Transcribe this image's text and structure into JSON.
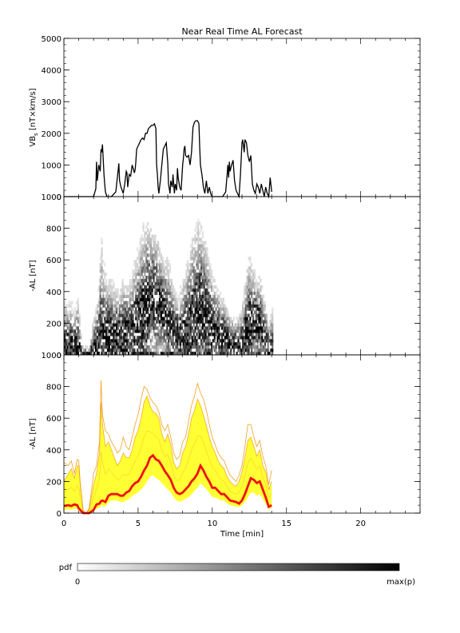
{
  "title": "Near Real Time AL Forecast",
  "colors": {
    "line": "#000000",
    "band_fill": "#ffff33",
    "band_edge": "#f2a020",
    "median": "#ee1111",
    "axis": "#000000"
  },
  "colorbar": {
    "label": "pdf",
    "min_label": "0",
    "max_label": "max(p)"
  },
  "chart_data": [
    {
      "type": "line",
      "panel": "top",
      "ylabel": "VB_s [nT×km/s]",
      "ylabel_parts": {
        "base": "VB",
        "sub": "s",
        "rest": " [nT×km/s]"
      },
      "xlim": [
        0,
        24
      ],
      "ylim": [
        0,
        5000
      ],
      "yticks": [
        0,
        1000,
        2000,
        3000,
        4000,
        5000
      ],
      "x": [
        0,
        2.0,
        2.15,
        2.2,
        2.25,
        2.35,
        2.45,
        2.5,
        2.55,
        2.6,
        2.7,
        2.75,
        2.8,
        2.9,
        3.0,
        3.2,
        3.5,
        3.65,
        3.7,
        3.75,
        3.85,
        4.0,
        4.1,
        4.2,
        4.25,
        4.3,
        4.4,
        4.5,
        4.6,
        4.75,
        4.8,
        4.85,
        4.9,
        5.0,
        5.1,
        5.2,
        5.3,
        5.4,
        5.5,
        5.6,
        5.7,
        5.8,
        5.9,
        6.0,
        6.1,
        6.2,
        6.25,
        6.3,
        6.35,
        6.4,
        6.5,
        6.6,
        6.7,
        6.8,
        6.9,
        7.0,
        7.05,
        7.15,
        7.2,
        7.3,
        7.35,
        7.45,
        7.5,
        7.6,
        7.65,
        7.7,
        7.8,
        7.9,
        8.0,
        8.05,
        8.1,
        8.15,
        8.2,
        8.3,
        8.4,
        8.5,
        8.6,
        8.7,
        8.8,
        8.9,
        9.0,
        9.1,
        9.15,
        9.2,
        9.3,
        9.4,
        9.5,
        9.6,
        9.7,
        9.8,
        9.9,
        10.0,
        10.3,
        10.7,
        10.9,
        11.0,
        11.05,
        11.1,
        11.15,
        11.2,
        11.3,
        11.4,
        11.5,
        11.6,
        11.7,
        11.8,
        11.9,
        12.0,
        12.05,
        12.15,
        12.2,
        12.3,
        12.4,
        12.5,
        12.6,
        12.7,
        12.8,
        12.9,
        13.0,
        13.1,
        13.2,
        13.3,
        13.4,
        13.5,
        13.6,
        13.7,
        13.8,
        13.9,
        14.0
      ],
      "values": [
        0,
        0,
        250,
        1100,
        500,
        1000,
        800,
        1500,
        1400,
        1650,
        700,
        400,
        150,
        0,
        0,
        0,
        150,
        800,
        1050,
        500,
        300,
        100,
        400,
        800,
        750,
        300,
        700,
        650,
        1000,
        750,
        850,
        1100,
        1500,
        1600,
        1700,
        1800,
        1850,
        1800,
        2000,
        2000,
        2150,
        2200,
        2250,
        2250,
        2300,
        2150,
        1000,
        700,
        300,
        100,
        500,
        1000,
        1500,
        1600,
        1700,
        1050,
        400,
        100,
        500,
        300,
        700,
        100,
        400,
        200,
        900,
        600,
        300,
        200,
        1000,
        1200,
        1500,
        1600,
        1300,
        1250,
        1300,
        1000,
        1400,
        2200,
        2350,
        2400,
        2400,
        2300,
        1600,
        1000,
        700,
        300,
        100,
        500,
        100,
        300,
        80,
        0,
        0,
        0,
        150,
        700,
        1000,
        600,
        1100,
        800,
        1000,
        1150,
        500,
        200,
        100,
        0,
        700,
        1700,
        1800,
        1400,
        1800,
        1700,
        1300,
        1100,
        1300,
        400,
        200,
        100,
        400,
        300,
        100,
        400,
        200,
        0,
        300,
        100,
        0,
        600,
        150
      ]
    },
    {
      "type": "heatmap",
      "panel": "middle",
      "ylabel": "-AL [nT]",
      "xlim": [
        0,
        24
      ],
      "ylim": [
        0,
        1000
      ],
      "yticks": [
        0,
        200,
        400,
        600,
        800,
        1000
      ],
      "time_range": [
        0,
        14
      ]
    },
    {
      "type": "area",
      "panel": "bottom",
      "ylabel": "-AL [nT]",
      "xlabel": "Time [min]",
      "xlim": [
        0,
        24
      ],
      "ylim": [
        0,
        1000
      ],
      "xticks": [
        0,
        5,
        10,
        15,
        20
      ],
      "yticks": [
        0,
        200,
        400,
        600,
        800,
        1000
      ],
      "x": [
        0.0,
        0.3,
        0.5,
        0.7,
        0.9,
        1.0,
        1.1,
        1.3,
        1.5,
        1.7,
        2.0,
        2.2,
        2.4,
        2.5,
        2.6,
        2.8,
        3.0,
        3.2,
        3.4,
        3.6,
        3.8,
        4.0,
        4.2,
        4.4,
        4.6,
        4.8,
        5.0,
        5.2,
        5.4,
        5.6,
        5.8,
        6.0,
        6.2,
        6.4,
        6.6,
        6.8,
        7.0,
        7.2,
        7.4,
        7.6,
        7.8,
        8.0,
        8.2,
        8.4,
        8.6,
        8.8,
        9.0,
        9.2,
        9.4,
        9.6,
        9.8,
        10.0,
        10.2,
        10.4,
        10.6,
        10.8,
        11.0,
        11.2,
        11.4,
        11.6,
        11.8,
        12.0,
        12.2,
        12.4,
        12.6,
        12.8,
        13.0,
        13.2,
        13.4,
        13.6,
        13.8,
        14.0
      ],
      "median": [
        45,
        50,
        45,
        55,
        50,
        30,
        20,
        0,
        0,
        0,
        20,
        55,
        60,
        75,
        80,
        70,
        110,
        120,
        120,
        120,
        110,
        110,
        130,
        140,
        170,
        190,
        200,
        230,
        270,
        300,
        350,
        365,
        340,
        330,
        300,
        265,
        240,
        210,
        160,
        130,
        120,
        130,
        150,
        170,
        200,
        220,
        250,
        300,
        270,
        230,
        200,
        160,
        160,
        140,
        120,
        120,
        100,
        80,
        75,
        70,
        60,
        80,
        120,
        170,
        220,
        210,
        190,
        200,
        150,
        100,
        40,
        50
      ],
      "band_low": [
        20,
        25,
        20,
        30,
        25,
        15,
        10,
        0,
        0,
        0,
        10,
        30,
        35,
        45,
        50,
        40,
        70,
        80,
        80,
        80,
        70,
        70,
        80,
        90,
        110,
        120,
        130,
        150,
        170,
        200,
        230,
        240,
        220,
        210,
        190,
        170,
        150,
        130,
        100,
        80,
        70,
        80,
        90,
        100,
        120,
        140,
        160,
        190,
        170,
        150,
        130,
        100,
        100,
        90,
        80,
        80,
        60,
        50,
        45,
        40,
        40,
        50,
        70,
        100,
        130,
        130,
        110,
        120,
        90,
        60,
        25,
        30
      ],
      "band_high": [
        200,
        250,
        280,
        220,
        300,
        300,
        180,
        10,
        0,
        20,
        180,
        250,
        380,
        700,
        560,
        420,
        450,
        400,
        350,
        300,
        330,
        380,
        350,
        350,
        400,
        480,
        520,
        600,
        700,
        740,
        680,
        640,
        630,
        600,
        500,
        450,
        500,
        430,
        320,
        280,
        300,
        380,
        420,
        500,
        600,
        650,
        720,
        680,
        620,
        550,
        480,
        420,
        380,
        330,
        300,
        280,
        230,
        200,
        180,
        170,
        200,
        260,
        350,
        460,
        480,
        420,
        360,
        400,
        300,
        260,
        150,
        200
      ],
      "band_outer": [
        320,
        300,
        330,
        250,
        340,
        330,
        200,
        15,
        0,
        30,
        250,
        300,
        450,
        840,
        620,
        520,
        500,
        450,
        420,
        380,
        400,
        480,
        420,
        400,
        480,
        560,
        620,
        720,
        800,
        780,
        730,
        700,
        680,
        640,
        560,
        520,
        560,
        480,
        380,
        340,
        360,
        450,
        480,
        580,
        680,
        740,
        820,
        760,
        720,
        650,
        560,
        480,
        430,
        380,
        350,
        330,
        280,
        240,
        220,
        200,
        240,
        300,
        420,
        560,
        560,
        480,
        420,
        460,
        360,
        300,
        180,
        270
      ]
    }
  ]
}
